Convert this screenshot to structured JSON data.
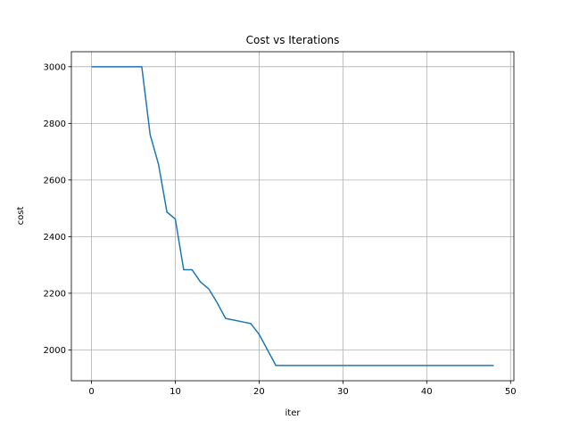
{
  "chart_data": {
    "type": "line",
    "title": "Cost vs Iterations",
    "xlabel": "iter",
    "ylabel": "cost",
    "xlim": [
      -2.4,
      50.4
    ],
    "ylim": [
      1891,
      3053
    ],
    "xticks": [
      0,
      10,
      20,
      30,
      40,
      50
    ],
    "yticks": [
      2000,
      2200,
      2400,
      2600,
      2800,
      3000
    ],
    "grid": true,
    "line_color": "#1f77b4",
    "grid_color": "#b0b0b0",
    "series": [
      {
        "x": [
          0,
          1,
          2,
          3,
          4,
          5,
          6,
          7,
          8,
          9,
          10,
          11,
          12,
          13,
          14,
          15,
          16,
          17,
          18,
          19,
          20,
          21,
          22,
          23,
          24,
          25,
          26,
          27,
          28,
          29,
          30,
          31,
          32,
          33,
          34,
          35,
          36,
          37,
          38,
          39,
          40,
          41,
          42,
          43,
          44,
          45,
          46,
          47,
          48
        ],
        "values": [
          3000,
          3000,
          3000,
          3000,
          3000,
          3000,
          3000,
          2760,
          2655,
          2487,
          2462,
          2283,
          2283,
          2240,
          2215,
          2166,
          2111,
          2105,
          2099,
          2093,
          2055,
          2000,
          1945,
          1945,
          1945,
          1945,
          1945,
          1945,
          1945,
          1945,
          1945,
          1945,
          1945,
          1945,
          1945,
          1945,
          1945,
          1945,
          1945,
          1945,
          1945,
          1945,
          1945,
          1945,
          1945,
          1945,
          1945,
          1945,
          1945
        ]
      }
    ]
  }
}
